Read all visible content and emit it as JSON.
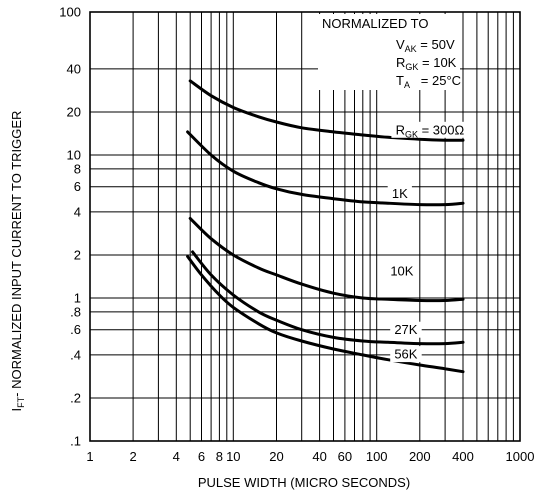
{
  "chart_data": {
    "type": "line",
    "title": "",
    "xlabel": "PULSE WIDTH (MICRO SECONDS)",
    "ylabel": "- NORMALIZED INPUT CURRENT TO TRIGGER",
    "ylabel_symbol": "I",
    "ylabel_subscript": "FT",
    "xscale": "log",
    "yscale": "log",
    "xlim": [
      1,
      1000
    ],
    "ylim": [
      0.1,
      100
    ],
    "grid": true,
    "x_tick_labels": [
      {
        "value": 1,
        "label": "1"
      },
      {
        "value": 2,
        "label": "2"
      },
      {
        "value": 4,
        "label": "4"
      },
      {
        "value": 6,
        "label": "6"
      },
      {
        "value": 8,
        "label": "8"
      },
      {
        "value": 10,
        "label": "10"
      },
      {
        "value": 20,
        "label": "20"
      },
      {
        "value": 40,
        "label": "40"
      },
      {
        "value": 60,
        "label": "60"
      },
      {
        "value": 100,
        "label": "100"
      },
      {
        "value": 200,
        "label": "200"
      },
      {
        "value": 400,
        "label": "400"
      },
      {
        "value": 1000,
        "label": "1000"
      }
    ],
    "y_tick_labels": [
      {
        "value": 0.1,
        "label": ".1"
      },
      {
        "value": 0.2,
        "label": ".2"
      },
      {
        "value": 0.4,
        "label": ".4"
      },
      {
        "value": 0.6,
        "label": ".6"
      },
      {
        "value": 0.8,
        "label": ".8"
      },
      {
        "value": 1,
        "label": "1"
      },
      {
        "value": 2,
        "label": "2"
      },
      {
        "value": 4,
        "label": "4"
      },
      {
        "value": 6,
        "label": "6"
      },
      {
        "value": 8,
        "label": "8"
      },
      {
        "value": 10,
        "label": "10"
      },
      {
        "value": 20,
        "label": "20"
      },
      {
        "value": 40,
        "label": "40"
      },
      {
        "value": 100,
        "label": "100"
      }
    ],
    "x_grid": [
      1,
      2,
      3,
      4,
      5,
      6,
      7,
      8,
      9,
      10,
      20,
      30,
      40,
      50,
      60,
      70,
      80,
      90,
      100,
      200,
      300,
      400,
      500,
      600,
      700,
      800,
      900,
      1000
    ],
    "y_grid": [
      0.1,
      0.2,
      0.4,
      0.6,
      0.8,
      1,
      2,
      4,
      6,
      8,
      10,
      20,
      40,
      100
    ],
    "annotation": {
      "heading": "NORMALIZED TO",
      "lines": [
        {
          "sym": "V",
          "sub": "AK",
          "rest": " = 50V"
        },
        {
          "sym": "R",
          "sub": "GK",
          "rest": " = 10K"
        },
        {
          "sym": "T",
          "sub": "A",
          "rest": "   = 25°C"
        }
      ]
    },
    "series": [
      {
        "label_sym": "R",
        "label_sub": "GK",
        "label_rest": " = 300Ω",
        "label_x": 235,
        "label_y": 15,
        "x": [
          5,
          7,
          10,
          15,
          20,
          30,
          50,
          80,
          120,
          200,
          300,
          400
        ],
        "y": [
          33,
          26,
          21.5,
          18.5,
          17,
          15.5,
          14.5,
          13.8,
          13.3,
          12.9,
          12.7,
          12.7
        ]
      },
      {
        "label": "1K",
        "label_x": 145,
        "label_y": 5.4,
        "x": [
          4.8,
          7,
          10,
          15,
          20,
          30,
          50,
          80,
          120,
          200,
          300,
          400
        ],
        "y": [
          14.5,
          10,
          7.7,
          6.4,
          5.8,
          5.3,
          4.95,
          4.7,
          4.6,
          4.5,
          4.5,
          4.6
        ]
      },
      {
        "label": "10K",
        "label_x": 150,
        "label_y": 1.55,
        "x": [
          5,
          7,
          10,
          15,
          20,
          30,
          50,
          80,
          120,
          200,
          300,
          400
        ],
        "y": [
          3.6,
          2.6,
          2.0,
          1.62,
          1.45,
          1.25,
          1.08,
          1.0,
          0.98,
          0.96,
          0.96,
          0.98
        ]
      },
      {
        "label": "27K",
        "label_x": 160,
        "label_y": 0.6,
        "x": [
          5.2,
          7,
          10,
          15,
          20,
          30,
          50,
          80,
          120,
          200,
          300,
          400
        ],
        "y": [
          2.1,
          1.45,
          1.05,
          0.8,
          0.7,
          0.6,
          0.53,
          0.5,
          0.49,
          0.48,
          0.48,
          0.49
        ]
      },
      {
        "label": "56K",
        "label_x": 160,
        "label_y": 0.405,
        "x": [
          4.8,
          6,
          8,
          10,
          15,
          20,
          30,
          50,
          80,
          120,
          200,
          300,
          400
        ],
        "y": [
          1.95,
          1.45,
          1.05,
          0.86,
          0.66,
          0.57,
          0.5,
          0.44,
          0.4,
          0.37,
          0.34,
          0.32,
          0.305
        ]
      }
    ]
  }
}
